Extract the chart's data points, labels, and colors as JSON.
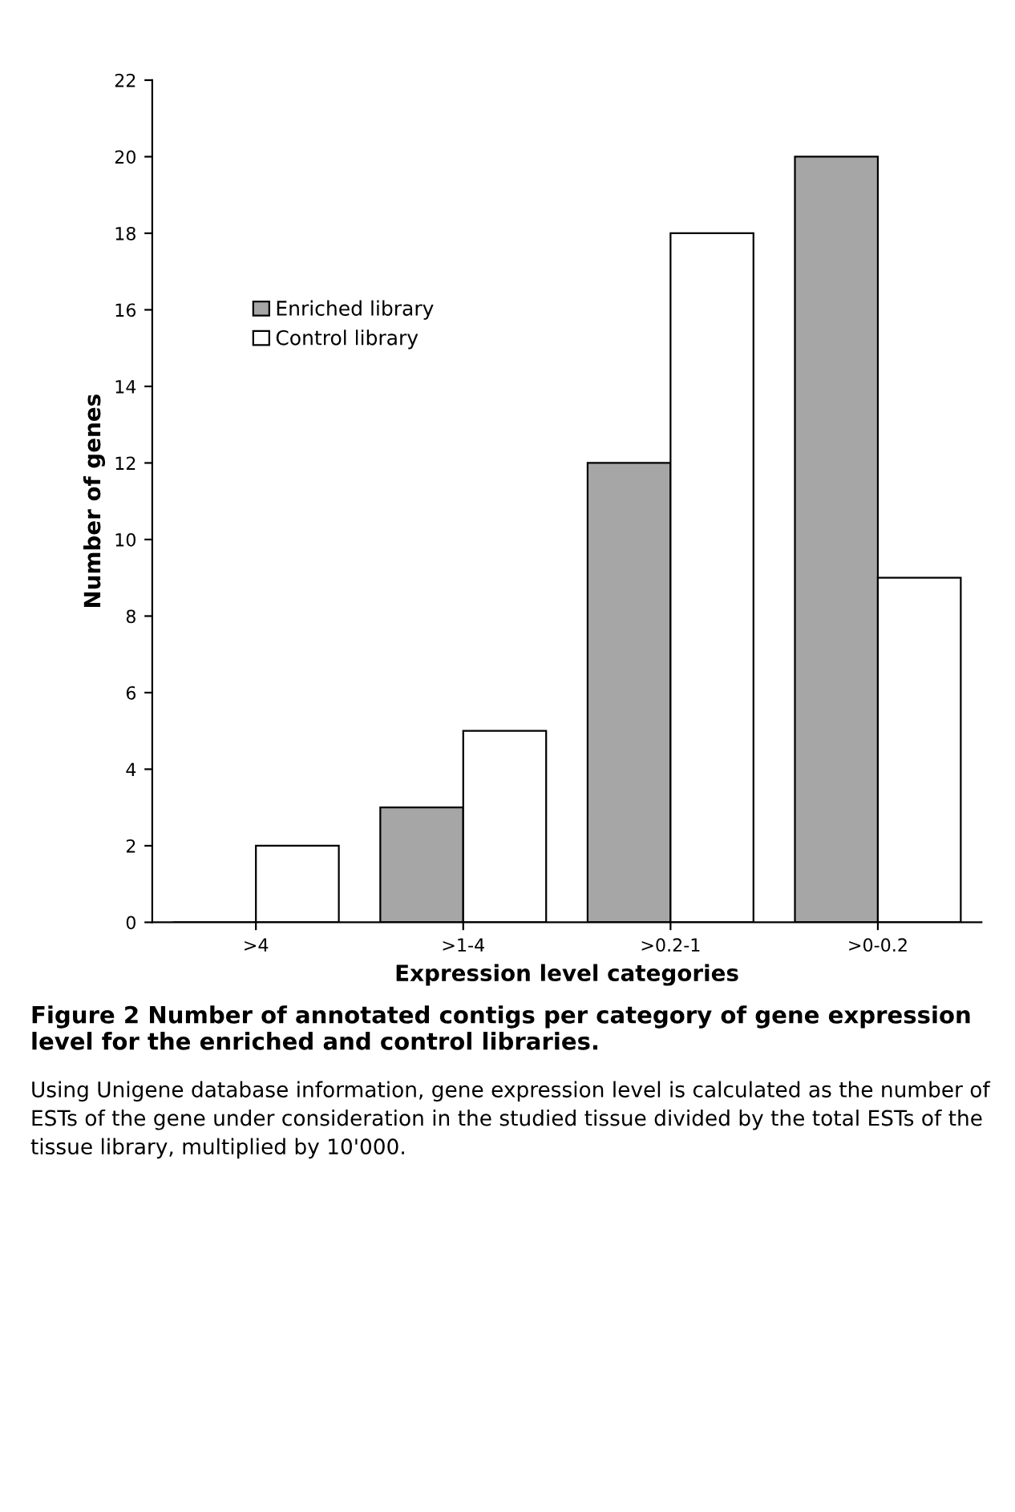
{
  "chart_data": {
    "type": "bar",
    "title": "Figure 2 Number of annotated contigs per category of gene expression level for the enriched and control libraries.",
    "xlabel": "Expression level categories",
    "ylabel": "Number of genes",
    "categories": [
      ">4",
      ">1-4",
      ">0.2-1",
      ">0-0.2"
    ],
    "series": [
      {
        "name": "Enriched library",
        "color": "#a6a6a6",
        "values": [
          0,
          3,
          12,
          20
        ]
      },
      {
        "name": "Control library",
        "color": "#ffffff",
        "values": [
          2,
          5,
          18,
          9
        ]
      }
    ],
    "ylim": [
      0,
      22
    ],
    "yticks": [
      0,
      2,
      4,
      6,
      8,
      10,
      12,
      14,
      16,
      18,
      20,
      22
    ],
    "grid": false,
    "legend": "top left",
    "annotations": [
      "Using Unigene database information, gene expression level is calculated as the number of ESTs of the gene under consideration in the studied tissue divided by the total ESTs of the tissue library, multiplied by 10'000."
    ]
  }
}
